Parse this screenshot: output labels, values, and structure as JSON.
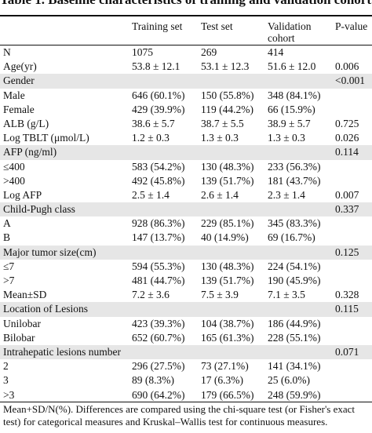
{
  "table": {
    "caption": "Table 1. Baseline characteristics of training and validation cohort.",
    "headers": [
      "",
      "Training set",
      "Test set",
      "Validation cohort",
      "P-value"
    ],
    "rows": [
      {
        "cells": [
          "N",
          "1075",
          "269",
          "414",
          ""
        ],
        "section": false
      },
      {
        "cells": [
          "Age(yr)",
          "53.8 ± 12.1",
          "53.1 ± 12.3",
          "51.6 ± 12.0",
          "0.006"
        ],
        "section": false
      },
      {
        "cells": [
          "Gender",
          "",
          "",
          "",
          "<0.001"
        ],
        "section": true
      },
      {
        "cells": [
          "Male",
          "646 (60.1%)",
          "150 (55.8%)",
          "348 (84.1%)",
          ""
        ],
        "section": false
      },
      {
        "cells": [
          "Female",
          "429 (39.9%)",
          "119 (44.2%)",
          "66 (15.9%)",
          ""
        ],
        "section": false
      },
      {
        "cells": [
          "ALB (g/L)",
          "38.6 ± 5.7",
          "38.7 ± 5.5",
          "38.9 ± 5.7",
          "0.725"
        ],
        "section": false
      },
      {
        "cells": [
          "Log TBLT (μmol/L)",
          "1.2 ± 0.3",
          "1.3 ± 0.3",
          "1.3 ± 0.3",
          "0.026"
        ],
        "section": false
      },
      {
        "cells": [
          "AFP (ng/ml)",
          "",
          "",
          "",
          "0.114"
        ],
        "section": true
      },
      {
        "cells": [
          "≤400",
          "583 (54.2%)",
          "130 (48.3%)",
          "233 (56.3%)",
          ""
        ],
        "section": false
      },
      {
        "cells": [
          ">400",
          "492 (45.8%)",
          "139 (51.7%)",
          "181 (43.7%)",
          ""
        ],
        "section": false
      },
      {
        "cells": [
          "Log AFP",
          "2.5 ± 1.4",
          "2.6 ± 1.4",
          "2.3 ± 1.4",
          "0.007"
        ],
        "section": false
      },
      {
        "cells": [
          "Child-Pugh class",
          "",
          "",
          "",
          "0.337"
        ],
        "section": true
      },
      {
        "cells": [
          "A",
          "928 (86.3%)",
          "229 (85.1%)",
          "345 (83.3%)",
          ""
        ],
        "section": false
      },
      {
        "cells": [
          "B",
          "147 (13.7%)",
          "40 (14.9%)",
          "69 (16.7%)",
          ""
        ],
        "section": false
      },
      {
        "cells": [
          "Major tumor size(cm)",
          "",
          "",
          "",
          "0.125"
        ],
        "section": true
      },
      {
        "cells": [
          "≤7",
          "594 (55.3%)",
          "130 (48.3%)",
          "224 (54.1%)",
          ""
        ],
        "section": false
      },
      {
        "cells": [
          ">7",
          "481 (44.7%)",
          "139 (51.7%)",
          "190 (45.9%)",
          ""
        ],
        "section": false
      },
      {
        "cells": [
          "Mean±SD",
          "7.2 ± 3.6",
          "7.5 ± 3.9",
          "7.1 ± 3.5",
          "0.328"
        ],
        "section": false
      },
      {
        "cells": [
          "Location of Lesions",
          "",
          "",
          "",
          "0.115"
        ],
        "section": true
      },
      {
        "cells": [
          "Unilobar",
          "423 (39.3%)",
          "104 (38.7%)",
          "186 (44.9%)",
          ""
        ],
        "section": false
      },
      {
        "cells": [
          "Bilobar",
          "652 (60.7%)",
          "165 (61.3%)",
          "228 (55.1%)",
          ""
        ],
        "section": false
      },
      {
        "cells": [
          "Intrahepatic lesions number",
          "",
          "",
          "",
          "0.071"
        ],
        "section": true
      },
      {
        "cells": [
          "2",
          "296 (27.5%)",
          "73 (27.1%)",
          "141 (34.1%)",
          ""
        ],
        "section": false
      },
      {
        "cells": [
          "3",
          "89 (8.3%)",
          "17 (6.3%)",
          "25 (6.0%)",
          ""
        ],
        "section": false
      },
      {
        "cells": [
          ">3",
          "690 (64.2%)",
          "179 (66.5%)",
          "248 (59.9%)",
          ""
        ],
        "section": false
      }
    ],
    "footnote": "Mean+SD/N(%). Differences are compared using the chi-square test (or Fisher's exact test) for categorical measures and Kruskal–Wallis test for continuous measures."
  }
}
